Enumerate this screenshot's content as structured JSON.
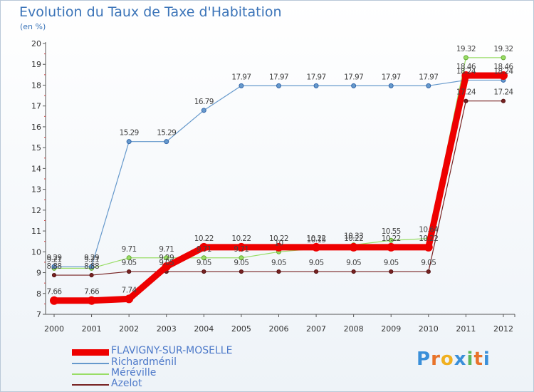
{
  "title": "Evolution du Taux de Taxe d'Habitation",
  "subtitle": "(en %)",
  "logo": "Proxiti",
  "chart_data": {
    "type": "line",
    "title": "Evolution du Taux de Taxe d'Habitation",
    "ylabel": "(en %)",
    "xlabel": "",
    "ylim": [
      7,
      20
    ],
    "yticks": [
      "7",
      "8",
      "9",
      "10",
      "11",
      "12",
      "13",
      "14",
      "15",
      "16",
      "17",
      "18",
      "19",
      "20"
    ],
    "grid": false,
    "x": [
      "2000",
      "2001",
      "2002",
      "2003",
      "2004",
      "2005",
      "2006",
      "2007",
      "2008",
      "2009",
      "2010",
      "2011",
      "2012"
    ],
    "series": [
      {
        "name": "FLAVIGNY-SUR-MOSELLE",
        "color": "#ee0000",
        "values": [
          7.66,
          7.66,
          7.74,
          9.29,
          10.22,
          10.22,
          10.22,
          10.22,
          10.22,
          10.22,
          10.22,
          18.46,
          18.46
        ],
        "labels": [
          "7.66",
          "7.66",
          "7.74",
          "9.29",
          "10.22",
          "10.22",
          "10.22",
          "10.22",
          "10.22",
          "10.22",
          "10.22",
          "18.46",
          "18.46"
        ]
      },
      {
        "name": "Richardménil",
        "color": "#6699cc",
        "values": [
          9.29,
          9.29,
          15.29,
          15.29,
          16.79,
          17.97,
          17.97,
          17.97,
          17.97,
          17.97,
          17.97,
          18.24,
          18.24
        ],
        "labels": [
          "9.29",
          "9.29",
          "15.29",
          "15.29",
          "16.79",
          "17.97",
          "17.97",
          "17.97",
          "17.97",
          "17.97",
          "17.97",
          "18.24",
          "18.24"
        ]
      },
      {
        "name": "Méréville",
        "color": "#99dd66",
        "values": [
          9.21,
          9.21,
          9.71,
          9.71,
          9.71,
          9.71,
          10.0,
          10.15,
          10.33,
          10.55,
          10.64,
          19.32,
          19.32
        ],
        "labels": [
          "9.21",
          "9.21",
          "9.71",
          "9.71",
          "9.71",
          "9.71",
          "10",
          "10.15",
          "10.33",
          "10.55",
          "10.64",
          "19.32",
          "19.32"
        ]
      },
      {
        "name": "Azelot",
        "color": "#772222",
        "values": [
          8.88,
          8.88,
          9.05,
          9.05,
          9.05,
          9.05,
          9.05,
          9.05,
          9.05,
          9.05,
          9.05,
          17.24,
          17.24
        ],
        "labels": [
          "8.88",
          "8.88",
          "9.05",
          "9.05",
          "9.05",
          "9.05",
          "9.05",
          "9.05",
          "9.05",
          "9.05",
          "9.05",
          "17.24",
          "17.24"
        ]
      }
    ],
    "legend": [
      "FLAVIGNY-SUR-MOSELLE",
      "Richardménil",
      "Méréville",
      "Azelot"
    ]
  }
}
